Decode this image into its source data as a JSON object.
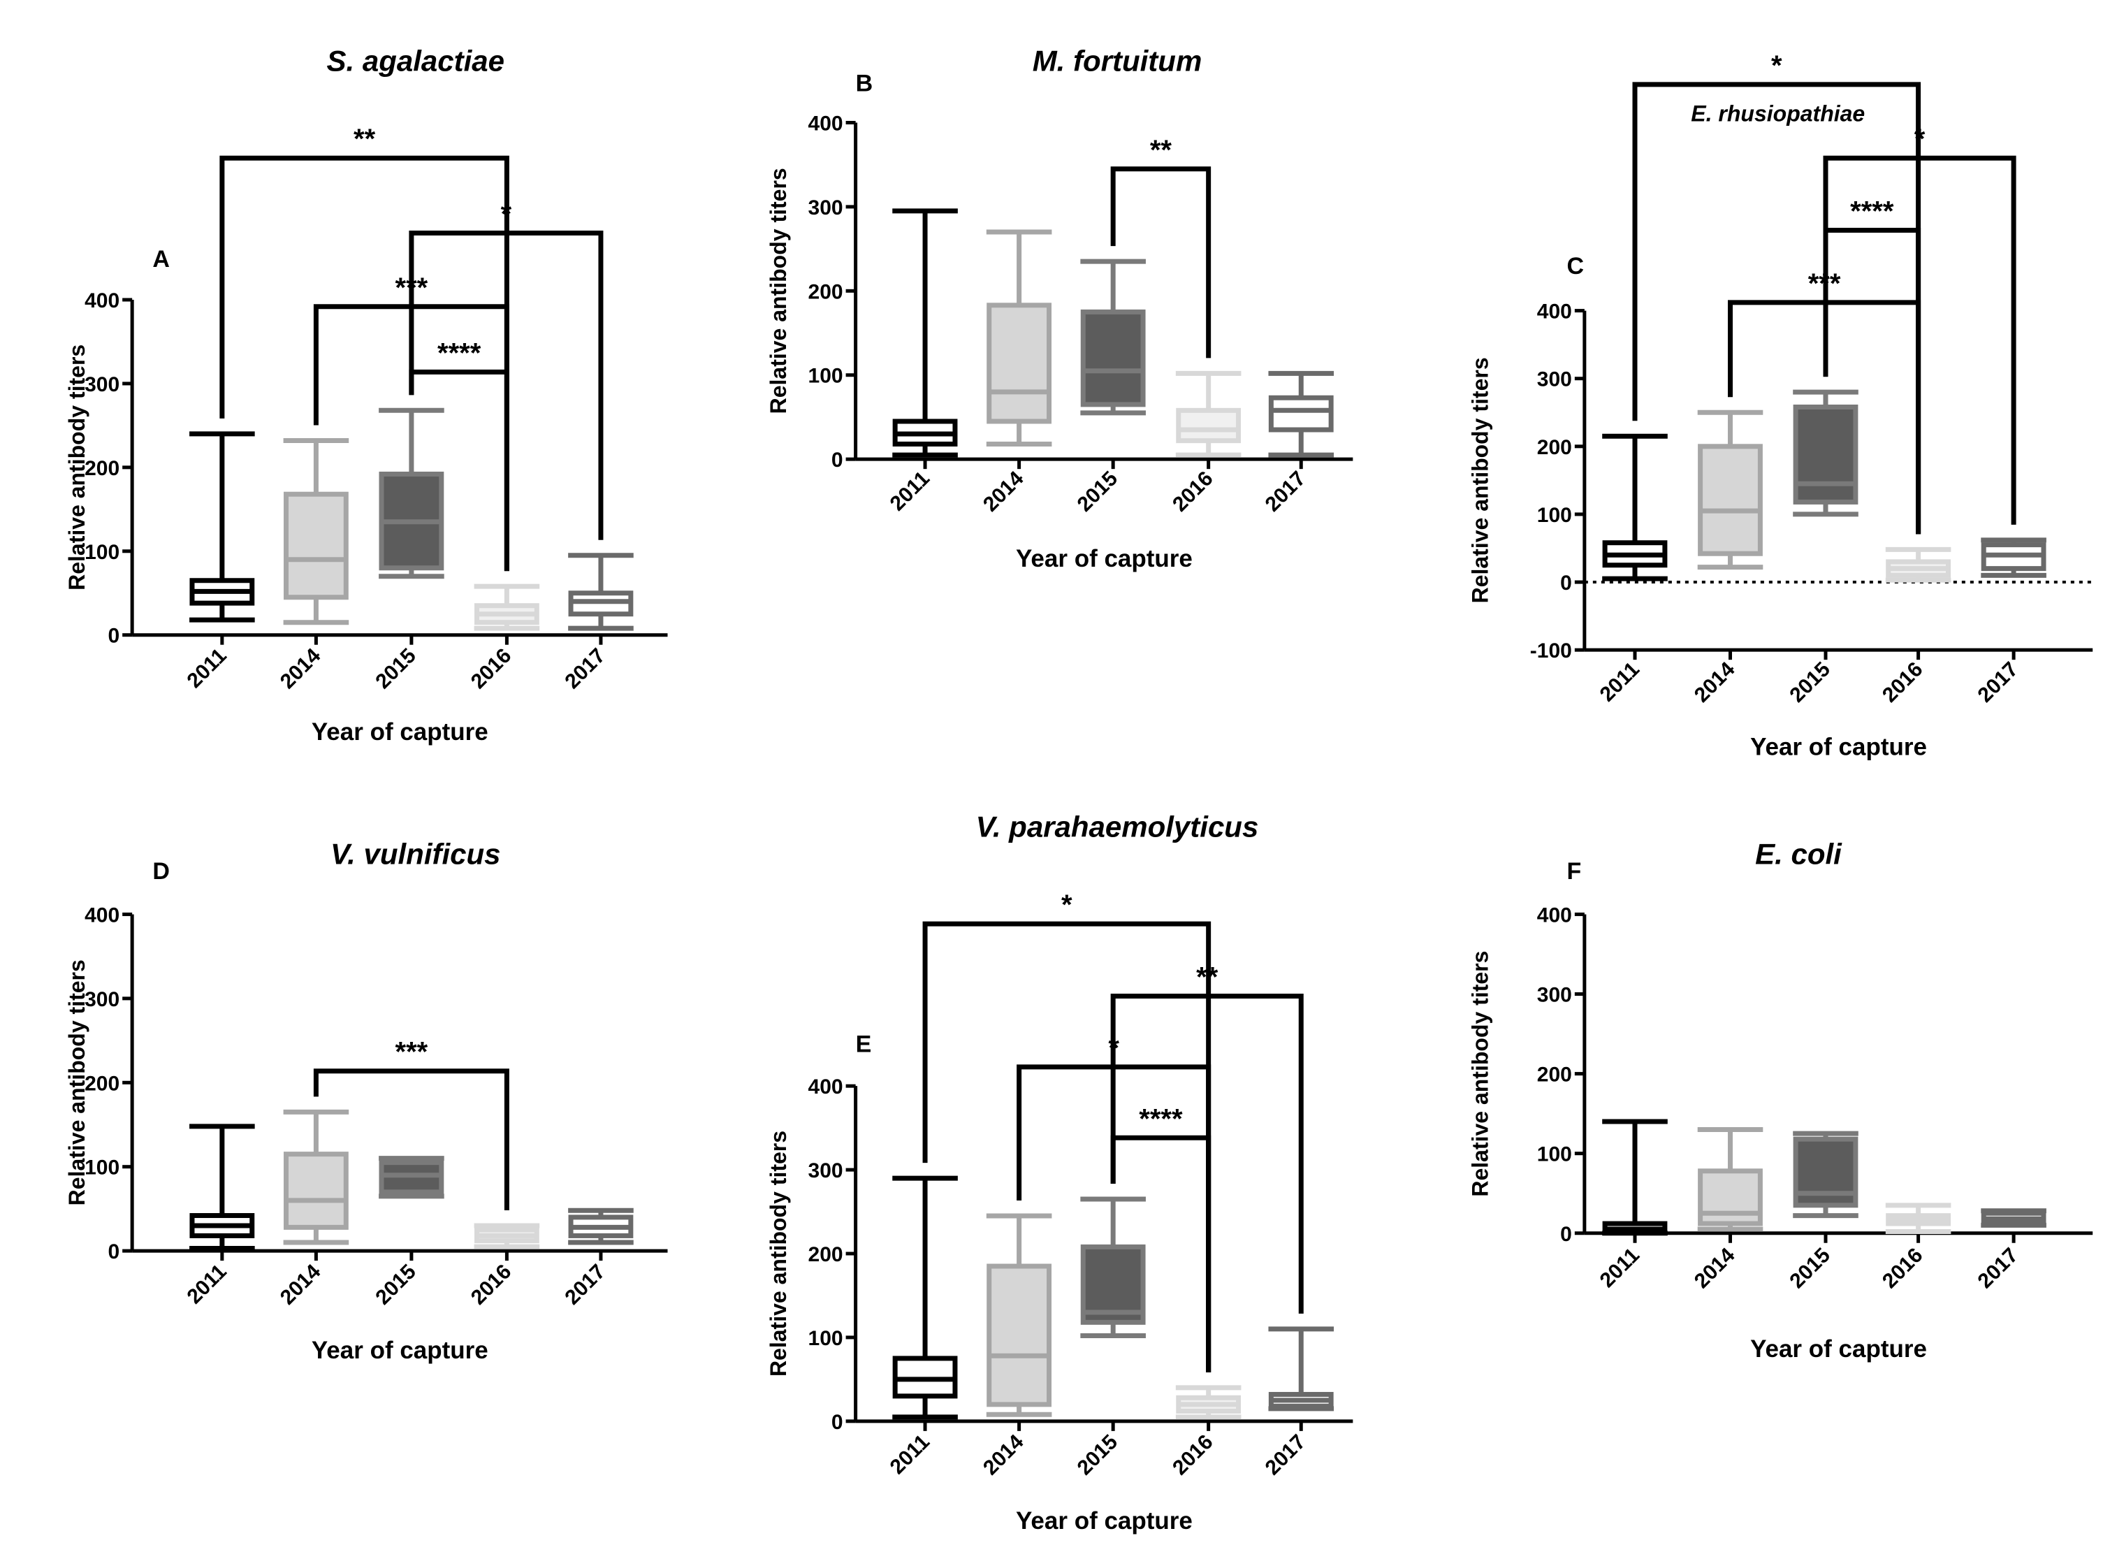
{
  "chart_data": [
    {
      "panel": "A",
      "type": "box",
      "title": "S. agalactiae",
      "xlabel": "Year of capture",
      "ylabel": "Relative antibody titers",
      "ylim": [
        0,
        400
      ],
      "yticks": [
        0,
        100,
        200,
        300,
        400
      ],
      "categories": [
        "2011",
        "2014",
        "2015",
        "2016",
        "2017"
      ],
      "boxes": [
        {
          "min": 18,
          "q1": 38,
          "median": 52,
          "q3": 65,
          "max": 240
        },
        {
          "min": 15,
          "q1": 45,
          "median": 90,
          "q3": 168,
          "max": 232
        },
        {
          "min": 70,
          "q1": 80,
          "median": 135,
          "q3": 192,
          "max": 268
        },
        {
          "min": 8,
          "q1": 15,
          "median": 25,
          "q3": 35,
          "max": 58
        },
        {
          "min": 8,
          "q1": 25,
          "median": 40,
          "q3": 50,
          "max": 95
        }
      ],
      "comparisons": [
        {
          "from": "2011",
          "to": "2016",
          "label": "**"
        },
        {
          "from": "2015",
          "to": "2017",
          "label": "*"
        },
        {
          "from": "2014",
          "to": "2016",
          "label": "***"
        },
        {
          "from": "2015",
          "to": "2016",
          "label": "****"
        }
      ]
    },
    {
      "panel": "B",
      "type": "box",
      "title": "M. fortuitum",
      "xlabel": "Year of capture",
      "ylabel": "Relative antibody titers",
      "ylim": [
        0,
        400
      ],
      "yticks": [
        0,
        100,
        200,
        300,
        400
      ],
      "categories": [
        "2011",
        "2014",
        "2015",
        "2016",
        "2017"
      ],
      "boxes": [
        {
          "min": 5,
          "q1": 18,
          "median": 30,
          "q3": 45,
          "max": 295
        },
        {
          "min": 18,
          "q1": 45,
          "median": 80,
          "q3": 183,
          "max": 270
        },
        {
          "min": 55,
          "q1": 65,
          "median": 105,
          "q3": 175,
          "max": 235
        },
        {
          "min": 5,
          "q1": 22,
          "median": 35,
          "q3": 58,
          "max": 102
        },
        {
          "min": 5,
          "q1": 35,
          "median": 58,
          "q3": 73,
          "max": 102
        }
      ],
      "comparisons": [
        {
          "from": "2015",
          "to": "2016",
          "label": "**"
        }
      ]
    },
    {
      "panel": "C",
      "type": "box",
      "title": "E. rhusiopathiae",
      "xlabel": "Year of capture",
      "ylabel": "Relative antibody titers",
      "ylim": [
        -100,
        400
      ],
      "yticks": [
        -100,
        0,
        100,
        200,
        300,
        400
      ],
      "categories": [
        "2011",
        "2014",
        "2015",
        "2016",
        "2017"
      ],
      "boxes": [
        {
          "min": 5,
          "q1": 25,
          "median": 40,
          "q3": 58,
          "max": 215
        },
        {
          "min": 22,
          "q1": 42,
          "median": 105,
          "q3": 200,
          "max": 250
        },
        {
          "min": 100,
          "q1": 118,
          "median": 145,
          "q3": 258,
          "max": 280
        },
        {
          "min": 3,
          "q1": 10,
          "median": 20,
          "q3": 30,
          "max": 48
        },
        {
          "min": 10,
          "q1": 20,
          "median": 40,
          "q3": 55,
          "max": 62
        }
      ],
      "comparisons": [
        {
          "from": "2011",
          "to": "2016",
          "label": "*"
        },
        {
          "from": "2015",
          "to": "2017",
          "label": "*"
        },
        {
          "from": "2015",
          "to": "2016",
          "label": "****"
        },
        {
          "from": "2014",
          "to": "2016",
          "label": "***"
        }
      ]
    },
    {
      "panel": "D",
      "type": "box",
      "title": "V. vulnificus",
      "xlabel": "Year of capture",
      "ylabel": "Relative antibody titers",
      "ylim": [
        0,
        400
      ],
      "yticks": [
        0,
        100,
        200,
        300,
        400
      ],
      "categories": [
        "2011",
        "2014",
        "2015",
        "2016",
        "2017"
      ],
      "boxes": [
        {
          "min": 3,
          "q1": 18,
          "median": 30,
          "q3": 42,
          "max": 148
        },
        {
          "min": 10,
          "q1": 28,
          "median": 60,
          "q3": 115,
          "max": 165
        },
        {
          "min": 65,
          "q1": 70,
          "median": 90,
          "q3": 105,
          "max": 110
        },
        {
          "min": 5,
          "q1": 12,
          "median": 18,
          "q3": 25,
          "max": 30
        },
        {
          "min": 10,
          "q1": 18,
          "median": 28,
          "q3": 40,
          "max": 48
        }
      ],
      "comparisons": [
        {
          "from": "2014",
          "to": "2016",
          "label": "***"
        }
      ]
    },
    {
      "panel": "E",
      "type": "box",
      "title": "V. parahaemolyticus",
      "xlabel": "Year of capture",
      "ylabel": "Relative antibody titers",
      "ylim": [
        0,
        400
      ],
      "yticks": [
        0,
        100,
        200,
        300,
        400
      ],
      "categories": [
        "2011",
        "2014",
        "2015",
        "2016",
        "2017"
      ],
      "boxes": [
        {
          "min": 5,
          "q1": 30,
          "median": 50,
          "q3": 75,
          "max": 290
        },
        {
          "min": 8,
          "q1": 20,
          "median": 78,
          "q3": 185,
          "max": 245
        },
        {
          "min": 102,
          "q1": 118,
          "median": 130,
          "q3": 208,
          "max": 265
        },
        {
          "min": 5,
          "q1": 12,
          "median": 20,
          "q3": 28,
          "max": 40
        },
        {
          "min": 15,
          "q1": 18,
          "median": 25,
          "q3": 32,
          "max": 110
        }
      ],
      "comparisons": [
        {
          "from": "2011",
          "to": "2016",
          "label": "*"
        },
        {
          "from": "2015",
          "to": "2017",
          "label": "**"
        },
        {
          "from": "2014",
          "to": "2016",
          "label": "*"
        },
        {
          "from": "2015",
          "to": "2016",
          "label": "****"
        }
      ]
    },
    {
      "panel": "F",
      "type": "box",
      "title": "E. coli",
      "xlabel": "Year of capture",
      "ylabel": "Relative antibody titers",
      "ylim": [
        0,
        400
      ],
      "yticks": [
        0,
        100,
        200,
        300,
        400
      ],
      "categories": [
        "2011",
        "2014",
        "2015",
        "2016",
        "2017"
      ],
      "boxes": [
        {
          "min": 0,
          "q1": 2,
          "median": 5,
          "q3": 12,
          "max": 140
        },
        {
          "min": 5,
          "q1": 12,
          "median": 25,
          "q3": 78,
          "max": 130
        },
        {
          "min": 22,
          "q1": 35,
          "median": 50,
          "q3": 118,
          "max": 125
        },
        {
          "min": 2,
          "q1": 12,
          "median": 18,
          "q3": 22,
          "max": 35
        },
        {
          "min": 10,
          "q1": 14,
          "median": 18,
          "q3": 25,
          "max": 28
        }
      ],
      "comparisons": []
    }
  ]
}
